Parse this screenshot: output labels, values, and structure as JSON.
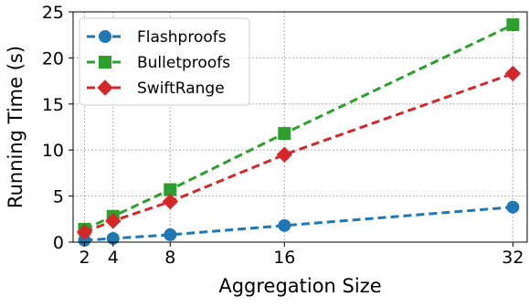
{
  "chart_data": {
    "type": "line",
    "title": "",
    "xlabel": "Aggregation Size",
    "ylabel": "Running Time (s)",
    "x": [
      2,
      4,
      8,
      16,
      32
    ],
    "xticks": [
      "2",
      "4",
      "8",
      "16",
      "32"
    ],
    "yticks": [
      "0",
      "5",
      "10",
      "15",
      "20",
      "25"
    ],
    "ylim": [
      0,
      25
    ],
    "xlim": [
      1.2,
      33
    ],
    "grid": true,
    "legend_position": "top-left",
    "series": [
      {
        "name": "Flashproofs",
        "values": [
          0.2,
          0.4,
          0.8,
          1.8,
          3.8
        ],
        "color": "#1f77b4",
        "marker": "circle",
        "line_style": "dashed"
      },
      {
        "name": "Bulletproofs",
        "values": [
          1.4,
          2.8,
          5.7,
          11.8,
          23.6
        ],
        "color": "#2ca02c",
        "marker": "square",
        "line_style": "dashed"
      },
      {
        "name": "SwiftRange",
        "values": [
          1.1,
          2.3,
          4.4,
          9.5,
          18.3
        ],
        "color": "#d62728",
        "marker": "diamond",
        "line_style": "dashed"
      }
    ]
  }
}
